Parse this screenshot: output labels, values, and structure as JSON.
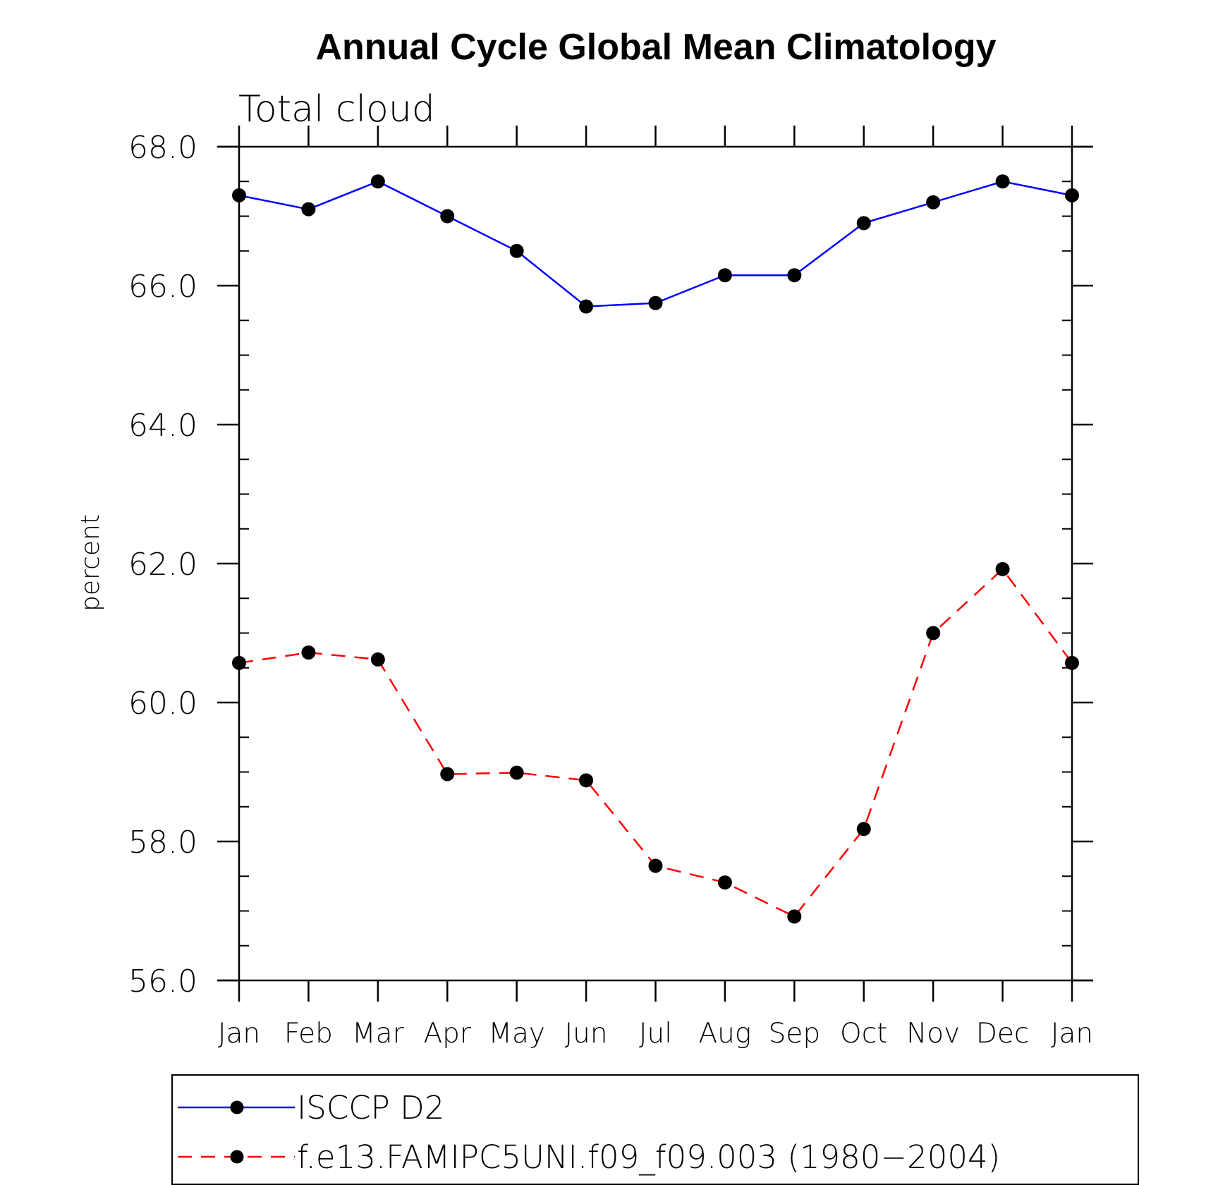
{
  "chart_data": {
    "type": "line",
    "title": "Annual Cycle Global Mean Climatology",
    "subtitle": "Total cloud",
    "xlabel": "",
    "ylabel": "percent",
    "categories": [
      "Jan",
      "Feb",
      "Mar",
      "Apr",
      "May",
      "Jun",
      "Jul",
      "Aug",
      "Sep",
      "Oct",
      "Nov",
      "Dec",
      "Jan"
    ],
    "ylim": [
      56.0,
      68.0
    ],
    "yticks": [
      "56.0",
      "58.0",
      "60.0",
      "62.0",
      "64.0",
      "66.0",
      "68.0"
    ],
    "series": [
      {
        "name": "ISCCP D2",
        "color": "#0000ff",
        "line_style": "solid",
        "values": [
          67.3,
          67.1,
          67.5,
          67.0,
          66.5,
          65.7,
          65.75,
          66.15,
          66.15,
          66.9,
          67.2,
          67.5,
          67.3
        ]
      },
      {
        "name": "f.e13.FAMIPC5UNI.f09_f09.003 (1980−2004)",
        "color": "#ff0000",
        "line_style": "dashed",
        "values": [
          60.57,
          60.72,
          60.62,
          58.97,
          58.99,
          58.88,
          57.65,
          57.41,
          56.92,
          58.18,
          61.0,
          61.92,
          60.57
        ]
      }
    ],
    "legend_position": "bottom"
  }
}
